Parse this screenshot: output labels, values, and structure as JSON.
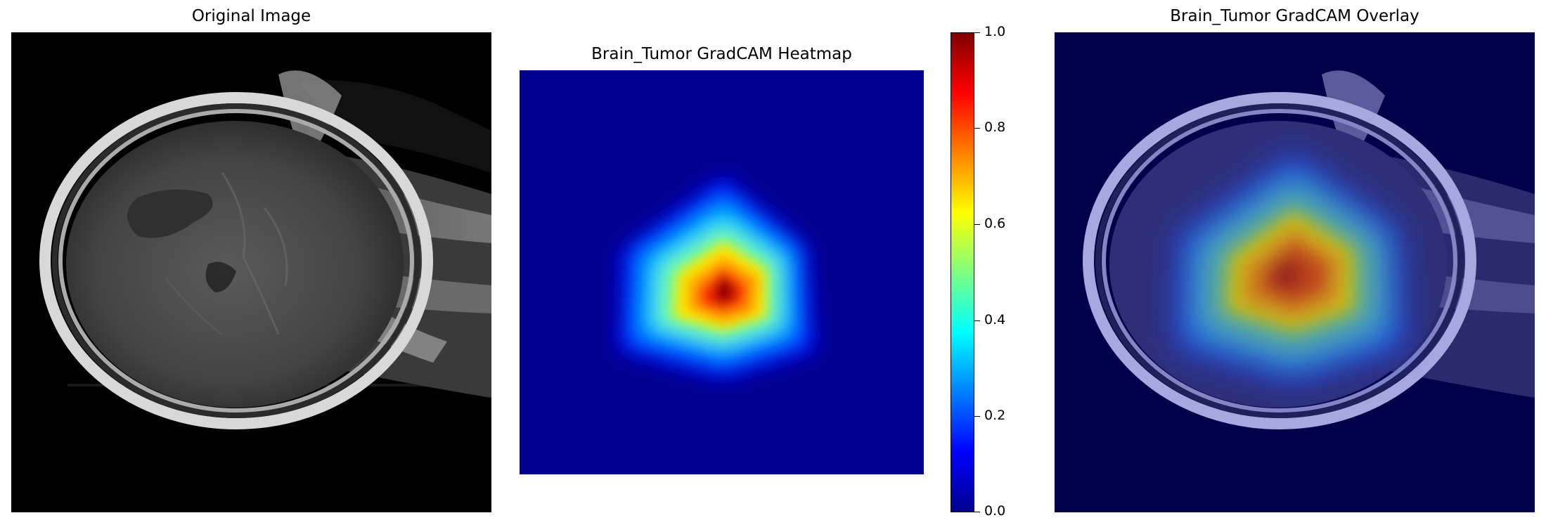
{
  "panels": {
    "original": {
      "title": "Original Image"
    },
    "heatmap": {
      "title": "Brain_Tumor GradCAM Heatmap"
    },
    "overlay": {
      "title": "Brain_Tumor GradCAM Overlay"
    }
  },
  "colorbar": {
    "colormap": "jet",
    "range": [
      0.0,
      1.0
    ],
    "ticks": [
      "0.0",
      "0.2",
      "0.4",
      "0.6",
      "0.8",
      "1.0"
    ]
  },
  "colors": {
    "background": "#ffffff",
    "heatmap_low": "#00008f",
    "heatmap_high": "#800000"
  }
}
